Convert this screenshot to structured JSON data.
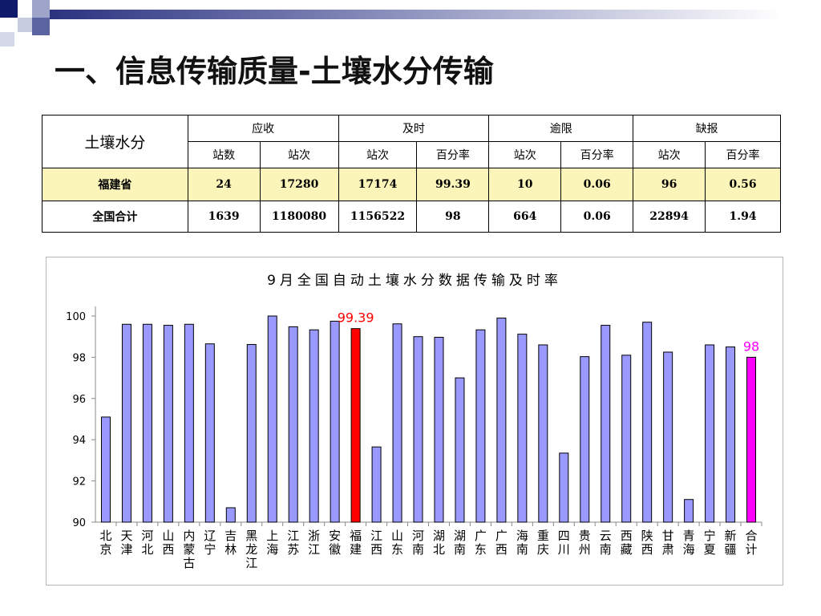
{
  "page": {
    "title": "一、信息传输质量-土壤水分传输"
  },
  "table": {
    "corner_label": "土壤水分",
    "groups": [
      "应收",
      "及时",
      "逾限",
      "缺报"
    ],
    "subheaders": [
      "站数",
      "站次",
      "站次",
      "百分率",
      "站次",
      "百分率",
      "站次",
      "百分率"
    ],
    "rows": [
      {
        "label": "福建省",
        "cells": [
          "24",
          "17280",
          "17174",
          "99.39",
          "10",
          "0.06",
          "96",
          "0.56"
        ]
      },
      {
        "label": "全国合计",
        "cells": [
          "1639",
          "1180080",
          "1156522",
          "98",
          "664",
          "0.06",
          "22894",
          "1.94"
        ]
      }
    ]
  },
  "chart_data": {
    "type": "bar",
    "title": "9月全国自动土壤水分数据传输及时率",
    "ylim": [
      90,
      100
    ],
    "yticks": [
      "90",
      "92",
      "94",
      "96",
      "98",
      "100"
    ],
    "grid": false,
    "categories": [
      "北京",
      "天津",
      "河北",
      "山西",
      "内蒙古",
      "辽宁",
      "吉林",
      "黑龙江",
      "上海",
      "江苏",
      "浙江",
      "安徽",
      "福建",
      "江西",
      "山东",
      "河南",
      "湖北",
      "湖南",
      "广东",
      "广西",
      "海南",
      "重庆",
      "四川",
      "贵州",
      "云南",
      "西藏",
      "陕西",
      "甘肃",
      "青海",
      "宁夏",
      "新疆",
      "合计"
    ],
    "values": [
      95.1,
      99.6,
      99.6,
      99.55,
      99.6,
      98.65,
      90.7,
      98.62,
      100,
      99.48,
      99.33,
      99.75,
      99.39,
      93.65,
      99.62,
      99,
      98.97,
      97,
      99.33,
      99.9,
      99.12,
      98.6,
      93.35,
      98.03,
      99.55,
      98.1,
      99.7,
      98.25,
      91.1,
      98.6,
      98.5,
      98
    ],
    "colors": {
      "default": "#9a99ff",
      "highlight": "#ff0000",
      "total": "#ff00ff"
    },
    "highlight_index": 12,
    "total_index": 31,
    "annotations": [
      {
        "index": 12,
        "text": "99.39",
        "color": "#ff0000"
      },
      {
        "index": 31,
        "text": "98",
        "color": "#ff00ff"
      }
    ]
  }
}
